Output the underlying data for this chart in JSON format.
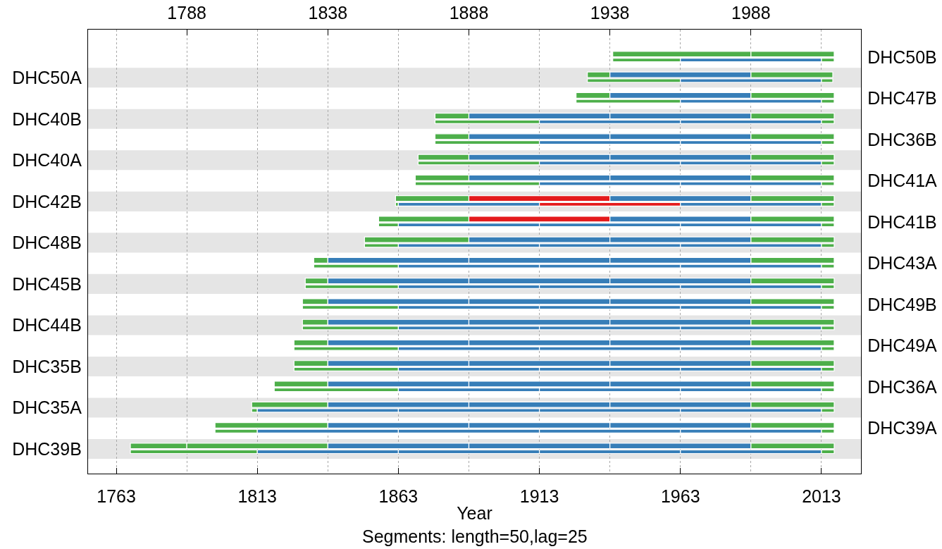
{
  "chart_data": {
    "type": "bar",
    "orientation": "horizontal",
    "xlabel": "Year",
    "annotations": [
      "Segments: length=50,lag=25"
    ],
    "categories": [
      "DHC50B",
      "DHC50A",
      "DHC47B",
      "DHC40B",
      "DHC36B",
      "DHC40A",
      "DHC41A",
      "DHC42B",
      "DHC41B",
      "DHC48B",
      "DHC43A",
      "DHC45B",
      "DHC49B",
      "DHC44B",
      "DHC49A",
      "DHC35B",
      "DHC36A",
      "DHC35A",
      "DHC39A",
      "DHC39B"
    ],
    "series": [
      {
        "base": [
          1939,
          1930,
          1926,
          1876,
          1876,
          1870,
          1869,
          1862,
          1856,
          1851,
          1833,
          1830,
          1829,
          1829,
          1826,
          1826,
          1819,
          1811,
          1798,
          1768
        ],
        "values": [
          49,
          8,
          12,
          12,
          12,
          18,
          19,
          26,
          32,
          37,
          5,
          8,
          9,
          9,
          12,
          12,
          19,
          27,
          40,
          20
        ],
        "colors": [
          "#4daf4a",
          "#4daf4a",
          "#4daf4a",
          "#4daf4a",
          "#4daf4a",
          "#4daf4a",
          "#4daf4a",
          "#4daf4a",
          "#4daf4a",
          "#4daf4a",
          "#4daf4a",
          "#4daf4a",
          "#4daf4a",
          "#4daf4a",
          "#4daf4a",
          "#4daf4a",
          "#4daf4a",
          "#4daf4a",
          "#4daf4a",
          "#4daf4a"
        ]
      },
      {
        "base": [
          1988,
          1938,
          1938,
          1888,
          1888,
          1888,
          1888,
          1888,
          1888,
          1888,
          1838,
          1838,
          1838,
          1838,
          1838,
          1838,
          1838,
          1838,
          1838,
          1788
        ],
        "values": [
          29.5,
          50,
          50,
          50,
          50,
          50,
          50,
          50,
          50,
          50,
          50,
          50,
          50,
          50,
          50,
          50,
          50,
          50,
          50,
          50
        ],
        "colors": [
          "#4daf4a",
          "#377eb8",
          "#377eb8",
          "#377eb8",
          "#377eb8",
          "#377eb8",
          "#377eb8",
          "#e41a1c",
          "#e41a1c",
          "#377eb8",
          "#377eb8",
          "#377eb8",
          "#377eb8",
          "#377eb8",
          "#377eb8",
          "#377eb8",
          "#377eb8",
          "#377eb8",
          "#377eb8",
          "#4daf4a"
        ]
      },
      {
        "base": [
          null,
          1988,
          1988,
          1938,
          1938,
          1938,
          1938,
          1938,
          1938,
          1938,
          1888,
          1888,
          1888,
          1888,
          1888,
          1888,
          1888,
          1888,
          1888,
          1838
        ],
        "values": [
          null,
          29,
          29.5,
          50,
          50,
          50,
          50,
          50,
          50,
          50,
          50,
          50,
          50,
          50,
          50,
          50,
          50,
          50,
          50,
          50
        ],
        "colors": [
          null,
          "#4daf4a",
          "#4daf4a",
          "#377eb8",
          "#377eb8",
          "#377eb8",
          "#377eb8",
          "#377eb8",
          "#377eb8",
          "#377eb8",
          "#377eb8",
          "#377eb8",
          "#377eb8",
          "#377eb8",
          "#377eb8",
          "#377eb8",
          "#377eb8",
          "#377eb8",
          "#377eb8",
          "#377eb8"
        ]
      },
      {
        "base": [
          null,
          null,
          null,
          1988,
          1988,
          1988,
          1988,
          1988,
          1988,
          1988,
          1938,
          1938,
          1938,
          1938,
          1938,
          1938,
          1938,
          1938,
          1938,
          1888
        ],
        "values": [
          null,
          null,
          null,
          29.5,
          29.5,
          29.5,
          29.5,
          29.5,
          29.5,
          29.5,
          50,
          50,
          50,
          50,
          50,
          50,
          50,
          50,
          50,
          50
        ],
        "colors": [
          null,
          null,
          null,
          "#4daf4a",
          "#4daf4a",
          "#4daf4a",
          "#4daf4a",
          "#4daf4a",
          "#4daf4a",
          "#4daf4a",
          "#377eb8",
          "#377eb8",
          "#377eb8",
          "#377eb8",
          "#377eb8",
          "#377eb8",
          "#377eb8",
          "#377eb8",
          "#377eb8",
          "#377eb8"
        ]
      },
      {
        "base": [
          null,
          null,
          null,
          null,
          null,
          null,
          null,
          null,
          null,
          null,
          1988,
          1988,
          1988,
          1988,
          1988,
          1988,
          1988,
          1988,
          1988,
          1938
        ],
        "values": [
          null,
          null,
          null,
          null,
          null,
          null,
          null,
          null,
          null,
          null,
          29.5,
          29.5,
          29.5,
          29.5,
          29.5,
          29.5,
          29.5,
          29.5,
          29.5,
          50
        ],
        "colors": [
          null,
          null,
          null,
          null,
          null,
          null,
          null,
          null,
          null,
          null,
          "#4daf4a",
          "#4daf4a",
          "#4daf4a",
          "#4daf4a",
          "#4daf4a",
          "#4daf4a",
          "#4daf4a",
          "#4daf4a",
          "#4daf4a",
          "#377eb8"
        ]
      },
      {
        "base": [
          null,
          null,
          null,
          null,
          null,
          null,
          null,
          null,
          null,
          null,
          null,
          null,
          null,
          null,
          null,
          null,
          null,
          null,
          null,
          1988
        ],
        "values": [
          null,
          null,
          null,
          null,
          null,
          null,
          null,
          null,
          null,
          null,
          null,
          null,
          null,
          null,
          null,
          null,
          null,
          null,
          null,
          29.5
        ],
        "colors": [
          null,
          null,
          null,
          null,
          null,
          null,
          null,
          null,
          null,
          null,
          null,
          null,
          null,
          null,
          null,
          null,
          null,
          null,
          null,
          "#4daf4a"
        ]
      },
      {
        "base": [
          1939,
          1930,
          1926,
          1876,
          1876,
          1870,
          1869,
          1862,
          1856,
          1851,
          1833,
          1830,
          1829,
          1829,
          1826,
          1826,
          1819,
          1811,
          1798,
          1768
        ],
        "values": [
          24,
          33,
          37,
          37,
          37,
          43,
          44,
          1,
          7,
          12,
          30,
          33,
          34,
          34,
          37,
          37,
          44,
          2,
          15,
          45
        ],
        "colors": [
          "#4daf4a",
          "#4daf4a",
          "#4daf4a",
          "#4daf4a",
          "#4daf4a",
          "#4daf4a",
          "#4daf4a",
          "#4daf4a",
          "#4daf4a",
          "#4daf4a",
          "#4daf4a",
          "#4daf4a",
          "#4daf4a",
          "#4daf4a",
          "#4daf4a",
          "#4daf4a",
          "#4daf4a",
          "#4daf4a",
          "#4daf4a",
          "#4daf4a"
        ]
      },
      {
        "base": [
          1963,
          1963,
          1963,
          1913,
          1913,
          1913,
          1913,
          1863,
          1863,
          1863,
          1863,
          1863,
          1863,
          1863,
          1863,
          1863,
          1863,
          1813,
          1813,
          1813
        ],
        "values": [
          50,
          50,
          50,
          50,
          50,
          50,
          50,
          50,
          50,
          50,
          50,
          50,
          50,
          50,
          50,
          50,
          50,
          50,
          50,
          50
        ],
        "colors": [
          "#377eb8",
          "#377eb8",
          "#377eb8",
          "#377eb8",
          "#377eb8",
          "#377eb8",
          "#377eb8",
          "#377eb8",
          "#377eb8",
          "#377eb8",
          "#377eb8",
          "#377eb8",
          "#377eb8",
          "#377eb8",
          "#377eb8",
          "#377eb8",
          "#377eb8",
          "#377eb8",
          "#377eb8",
          "#377eb8"
        ]
      },
      {
        "base": [
          2013,
          2013,
          2013,
          1963,
          1963,
          1963,
          1963,
          1913,
          1913,
          1913,
          1913,
          1913,
          1913,
          1913,
          1913,
          1913,
          1913,
          1863,
          1863,
          1863
        ],
        "values": [
          4.5,
          4,
          4.5,
          50,
          50,
          50,
          50,
          50,
          50,
          50,
          50,
          50,
          50,
          50,
          50,
          50,
          50,
          50,
          50,
          50
        ],
        "colors": [
          "#4daf4a",
          "#4daf4a",
          "#4daf4a",
          "#377eb8",
          "#377eb8",
          "#377eb8",
          "#377eb8",
          "#e41a1c",
          "#377eb8",
          "#377eb8",
          "#377eb8",
          "#377eb8",
          "#377eb8",
          "#377eb8",
          "#377eb8",
          "#377eb8",
          "#377eb8",
          "#377eb8",
          "#377eb8",
          "#377eb8"
        ]
      },
      {
        "base": [
          null,
          null,
          null,
          2013,
          2013,
          2013,
          2013,
          1963,
          1963,
          1963,
          1963,
          1963,
          1963,
          1963,
          1963,
          1963,
          1963,
          1913,
          1913,
          1913
        ],
        "values": [
          null,
          null,
          null,
          4.5,
          4.5,
          4.5,
          4.5,
          50,
          50,
          50,
          50,
          50,
          50,
          50,
          50,
          50,
          50,
          50,
          50,
          50
        ],
        "colors": [
          null,
          null,
          null,
          "#4daf4a",
          "#4daf4a",
          "#4daf4a",
          "#4daf4a",
          "#377eb8",
          "#377eb8",
          "#377eb8",
          "#377eb8",
          "#377eb8",
          "#377eb8",
          "#377eb8",
          "#377eb8",
          "#377eb8",
          "#377eb8",
          "#377eb8",
          "#377eb8",
          "#377eb8"
        ]
      },
      {
        "base": [
          null,
          null,
          null,
          null,
          null,
          null,
          null,
          2013,
          2013,
          2013,
          2013,
          2013,
          2013,
          2013,
          2013,
          2013,
          2013,
          1963,
          1963,
          1963
        ],
        "values": [
          null,
          null,
          null,
          null,
          null,
          null,
          null,
          4.5,
          4.5,
          4.5,
          4.5,
          4.5,
          4.5,
          4.5,
          4.5,
          4.5,
          4.5,
          50,
          50,
          50
        ],
        "colors": [
          null,
          null,
          null,
          null,
          null,
          null,
          null,
          "#4daf4a",
          "#4daf4a",
          "#4daf4a",
          "#4daf4a",
          "#4daf4a",
          "#4daf4a",
          "#4daf4a",
          "#4daf4a",
          "#4daf4a",
          "#4daf4a",
          "#377eb8",
          "#377eb8",
          "#377eb8"
        ]
      },
      {
        "base": [
          null,
          null,
          null,
          null,
          null,
          null,
          null,
          null,
          null,
          null,
          null,
          null,
          null,
          null,
          null,
          null,
          null,
          2013,
          2013,
          2013
        ],
        "values": [
          null,
          null,
          null,
          null,
          null,
          null,
          null,
          null,
          null,
          null,
          null,
          null,
          null,
          null,
          null,
          null,
          null,
          4.5,
          4.5,
          4.5
        ],
        "colors": [
          null,
          null,
          null,
          null,
          null,
          null,
          null,
          null,
          null,
          null,
          null,
          null,
          null,
          null,
          null,
          null,
          null,
          "#4daf4a",
          "#4daf4a",
          "#4daf4a"
        ]
      }
    ],
    "xlim": [
      1753,
      2027
    ],
    "xticks": [
      1763,
      1813,
      1863,
      1913,
      1963,
      2013
    ],
    "x2lim": [
      1753,
      2027
    ],
    "x2ticks": [
      1788,
      1838,
      1888,
      1938,
      1988
    ],
    "grid": "x",
    "bands": [
      {
        "axis": "y",
        "from": "DHC50A",
        "to": "DHC50A",
        "color": "#e5e5e5"
      },
      {
        "axis": "y",
        "from": "DHC40B",
        "to": "DHC40B",
        "color": "#e5e5e5"
      },
      {
        "axis": "y",
        "from": "DHC40A",
        "to": "DHC40A",
        "color": "#e5e5e5"
      },
      {
        "axis": "y",
        "from": "DHC42B",
        "to": "DHC42B",
        "color": "#e5e5e5"
      },
      {
        "axis": "y",
        "from": "DHC48B",
        "to": "DHC48B",
        "color": "#e5e5e5"
      },
      {
        "axis": "y",
        "from": "DHC45B",
        "to": "DHC45B",
        "color": "#e5e5e5"
      },
      {
        "axis": "y",
        "from": "DHC44B",
        "to": "DHC44B",
        "color": "#e5e5e5"
      },
      {
        "axis": "y",
        "from": "DHC35B",
        "to": "DHC35B",
        "color": "#e5e5e5"
      },
      {
        "axis": "y",
        "from": "DHC35A",
        "to": "DHC35A",
        "color": "#e5e5e5"
      },
      {
        "axis": "y",
        "from": "DHC39B",
        "to": "DHC39B",
        "color": "#e5e5e5"
      }
    ]
  }
}
